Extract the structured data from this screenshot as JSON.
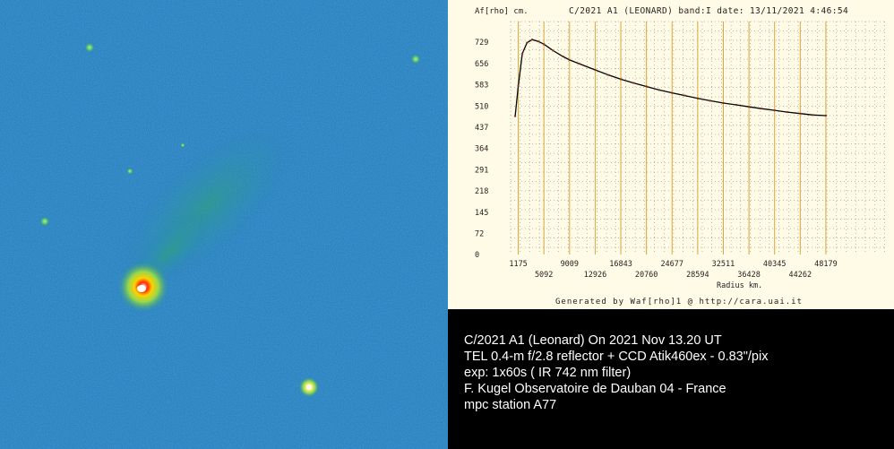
{
  "chart_data": {
    "type": "line",
    "title": "C/2021 A1 (LEONARD) band:I date: 13/11/2021  4:46:54",
    "ylabel": "Af[rho] cm.",
    "xlabel": "Radius km.",
    "ylim": [
      0,
      800
    ],
    "xlim": [
      0,
      57500
    ],
    "y_ticks": [
      "729",
      "656",
      "583",
      "510",
      "437",
      "364",
      "291",
      "218",
      "145",
      "72",
      "0"
    ],
    "y_tick_values": [
      729,
      656,
      583,
      510,
      437,
      364,
      291,
      218,
      145,
      72,
      0
    ],
    "x_ticks_row1": [
      "1175",
      "9009",
      "16843",
      "24677",
      "32511",
      "40345",
      "48179"
    ],
    "x_ticks_row1_values": [
      1175,
      9009,
      16843,
      24677,
      32511,
      40345,
      48179
    ],
    "x_ticks_row2": [
      "5092",
      "12926",
      "20760",
      "28594",
      "36428",
      "44262"
    ],
    "x_ticks_row2_values": [
      5092,
      12926,
      20760,
      28594,
      36428,
      44262
    ],
    "grid": true,
    "legend": "none",
    "series": [
      {
        "x": [
          700,
          1175,
          1800,
          2500,
          3300,
          4200,
          5092,
          6500,
          8000,
          9009,
          10500,
          12926,
          15000,
          16843,
          18800,
          20760,
          22700,
          24677,
          26600,
          28594,
          30500,
          32511,
          34500,
          36428,
          38300,
          40345,
          42300,
          44262,
          46200,
          48179
        ],
        "y": [
          475,
          580,
          690,
          727,
          738,
          732,
          722,
          700,
          680,
          668,
          655,
          634,
          616,
          602,
          589,
          577,
          565,
          555,
          546,
          536,
          528,
          520,
          514,
          507,
          501,
          495,
          489,
          484,
          479,
          477
        ]
      }
    ],
    "color": "#000000",
    "footer": "Generated by Waf[rho]1 @ http://cara.uai.it"
  },
  "caption": {
    "line1": "C/2021 A1 (Leonard) On 2021 Nov 13.20 UT",
    "line2": "TEL 0.4-m f/2.8 reflector + CCD Atik460ex - 0.83\"/pix",
    "line3": "exp: 1x60s ( IR 742 nm filter)",
    "line4": "F. Kugel Observatoire de Dauban 04 - France",
    "line5": "mpc station A77"
  }
}
